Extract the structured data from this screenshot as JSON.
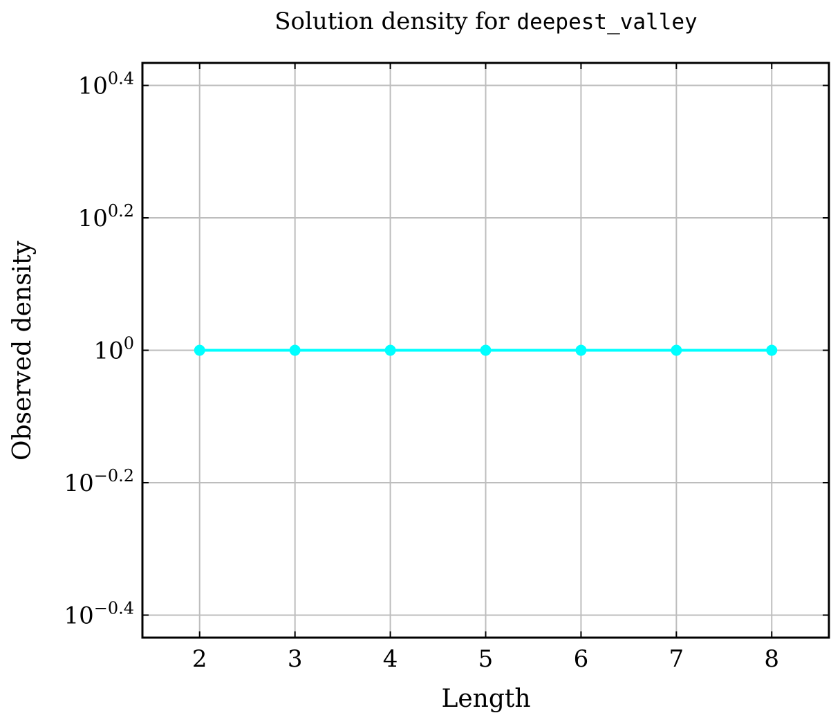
{
  "chart_data": {
    "type": "line",
    "title_prefix": "Solution density for ",
    "title_code": "deepest_valley",
    "xlabel": "Length",
    "ylabel": "Observed density",
    "x": [
      2,
      3,
      4,
      5,
      6,
      7,
      8
    ],
    "series": [
      {
        "values": [
          1,
          1,
          1,
          1,
          1,
          1,
          1
        ],
        "color": "#00ffff"
      }
    ],
    "xlim": [
      1.4,
      8.6
    ],
    "ylim_log10": [
      -0.434,
      0.434
    ],
    "yscale": "log",
    "x_ticks": [
      "2",
      "3",
      "4",
      "5",
      "6",
      "7",
      "8"
    ],
    "y_ticks": [
      {
        "base": "10",
        "exp": "0.4"
      },
      {
        "base": "10",
        "exp": "0.2"
      },
      {
        "base": "10",
        "exp": "0"
      },
      {
        "base": "10",
        "exp": "−0.2"
      },
      {
        "base": "10",
        "exp": "−0.4"
      }
    ],
    "y_tick_log10": [
      0.4,
      0.2,
      0,
      -0.2,
      -0.4
    ],
    "grid": true
  }
}
